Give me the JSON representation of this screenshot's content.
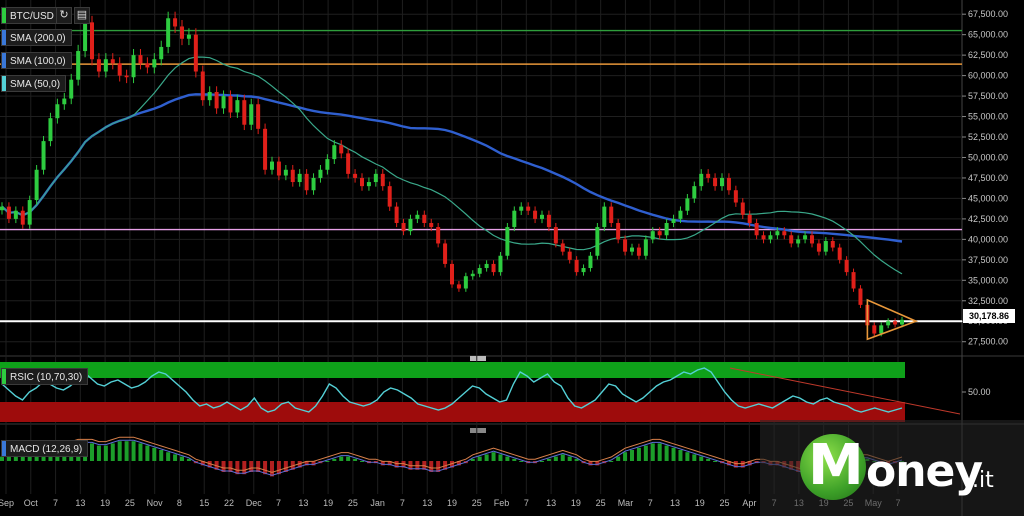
{
  "chart_data": [
    {
      "type": "candlestick",
      "title": "BTC/USD",
      "indicators": [
        "SMA (200,0)",
        "SMA (100,0)",
        "SMA (50,0)"
      ],
      "y_ticks": [
        "67,500.00",
        "65,000.00",
        "62,500.00",
        "60,000.00",
        "57,500.00",
        "55,000.00",
        "52,500.00",
        "50,000.00",
        "47,500.00",
        "45,000.00",
        "42,500.00",
        "40,000.00",
        "37,500.00",
        "35,000.00",
        "32,500.00",
        "30,000.00",
        "27,500.00"
      ],
      "ylim": [
        26000,
        68500
      ],
      "last_price": "30,178.86",
      "horizontal_levels": [
        {
          "value": 65500,
          "color": "#2f9e3c"
        },
        {
          "value": 61400,
          "color": "#e8973a"
        },
        {
          "value": 41200,
          "color": "#e6a0e6"
        },
        {
          "value": 30000,
          "color": "#ffffff"
        }
      ],
      "closes": [
        44000,
        42500,
        43500,
        41800,
        44800,
        48500,
        52000,
        54800,
        56500,
        57200,
        59500,
        63000,
        66500,
        62000,
        60500,
        62000,
        61500,
        60000,
        59800,
        62500,
        61500,
        61000,
        62000,
        63500,
        67000,
        66000,
        64500,
        65000,
        60500,
        57000,
        58000,
        56000,
        57500,
        55500,
        57000,
        54000,
        56500,
        53500,
        48500,
        49500,
        47800,
        48500,
        47000,
        48000,
        46000,
        47500,
        48500,
        49800,
        51500,
        50500,
        48000,
        47500,
        46500,
        47000,
        48000,
        46500,
        44000,
        42000,
        41000,
        42500,
        43000,
        42000,
        41500,
        39500,
        37000,
        34500,
        34000,
        35500,
        35800,
        36500,
        37000,
        36000,
        38000,
        41500,
        43500,
        44000,
        43500,
        42500,
        43000,
        41500,
        39500,
        38500,
        37500,
        36000,
        36500,
        38000,
        41500,
        44000,
        42000,
        40000,
        38500,
        39000,
        38000,
        40000,
        41000,
        40500,
        42000,
        42500,
        43500,
        45000,
        46500,
        48000,
        47500,
        46500,
        47500,
        46000,
        44500,
        43000,
        42000,
        40500,
        40000,
        40500,
        41000,
        40500,
        39500,
        40000,
        40500,
        39500,
        38500,
        39800,
        39000,
        37500,
        36000,
        34000,
        32000,
        29500,
        28500,
        29500,
        30000,
        29600,
        30178
      ]
    },
    {
      "type": "line",
      "title": "RSIC (10,70,30)",
      "y_ticks": [
        "50.00"
      ],
      "ylim": [
        20,
        80
      ],
      "values": [
        58,
        52,
        46,
        42,
        50,
        54,
        60,
        58,
        54,
        52,
        56,
        62,
        70,
        64,
        58,
        56,
        60,
        62,
        58,
        54,
        56,
        60,
        66,
        70,
        68,
        62,
        56,
        50,
        42,
        36,
        38,
        34,
        36,
        40,
        36,
        32,
        36,
        44,
        34,
        30,
        32,
        38,
        40,
        34,
        32,
        30,
        36,
        46,
        58,
        54,
        46,
        40,
        38,
        36,
        38,
        42,
        50,
        54,
        52,
        48,
        44,
        38,
        36,
        34,
        32,
        34,
        38,
        44,
        50,
        56,
        54,
        48,
        44,
        40,
        42,
        58,
        70,
        66,
        60,
        64,
        68,
        60,
        56,
        44,
        36,
        34,
        38,
        42,
        50,
        58,
        56,
        48,
        44,
        40,
        44,
        50,
        56,
        60,
        62,
        66,
        70,
        68,
        72,
        74,
        70,
        60,
        50,
        42,
        36,
        34,
        36,
        38,
        36,
        34,
        38,
        42,
        46,
        44,
        40,
        38,
        42,
        44,
        40,
        38,
        36,
        32,
        30,
        32,
        34,
        32,
        30,
        32,
        34
      ]
    },
    {
      "type": "bar",
      "title": "MACD (12,26,9)",
      "x_tick_labels": [
        "Sep",
        "Oct",
        "7",
        "13",
        "19",
        "25",
        "Nov",
        "8",
        "15",
        "22",
        "Dec",
        "7",
        "13",
        "19",
        "25",
        "Jan",
        "7",
        "13",
        "19",
        "25",
        "Feb",
        "7",
        "13",
        "19",
        "25",
        "Mar",
        "7",
        "13",
        "19",
        "25",
        "Apr",
        "7",
        "13",
        "19",
        "25",
        "May",
        "7"
      ],
      "histogram": [
        2,
        3,
        4,
        4,
        5,
        5,
        6,
        6,
        6,
        7,
        7,
        8,
        8,
        8,
        7,
        7,
        8,
        9,
        9,
        9,
        8,
        7,
        6,
        5,
        4,
        3,
        2,
        1,
        -1,
        -2,
        -3,
        -4,
        -5,
        -5,
        -6,
        -6,
        -5,
        -5,
        -6,
        -7,
        -6,
        -5,
        -4,
        -3,
        -2,
        -2,
        -1,
        0,
        1,
        2,
        2,
        1,
        0,
        -1,
        -1,
        -2,
        -2,
        -3,
        -3,
        -4,
        -4,
        -4,
        -5,
        -5,
        -4,
        -3,
        -2,
        -1,
        1,
        2,
        3,
        4,
        3,
        2,
        1,
        0,
        -1,
        -1,
        0,
        1,
        2,
        3,
        2,
        1,
        -1,
        -2,
        -2,
        -1,
        0,
        2,
        4,
        5,
        6,
        7,
        8,
        8,
        7,
        6,
        5,
        4,
        3,
        2,
        1,
        0,
        -1,
        -2,
        -3,
        -3,
        -2,
        -1,
        -1,
        -2,
        -2,
        -3,
        -4,
        -5,
        -6,
        -6,
        -5,
        -4,
        -3,
        -2,
        -1,
        0,
        1,
        1,
        0,
        -1,
        -2,
        -1,
        0
      ]
    }
  ],
  "labels": {
    "main": "BTC/USD",
    "sma200": "SMA (200,0)",
    "sma100": "SMA (100,0)",
    "sma50": "SMA (50,0)",
    "rsi": "RSIC (10,70,30)",
    "macd": "MACD (12,26,9)",
    "rsi_tick": "50.00"
  },
  "tools": {
    "refresh_icon": "refresh-icon",
    "chart_icon": "chart-icon"
  },
  "watermark": {
    "brand_m": "M",
    "brand_rest": "oney",
    "brand_tld": ".it"
  },
  "colors": {
    "up": "#2ecc40",
    "down": "#e0201a",
    "sma200": "#2f5fcf",
    "sma100": "#3a78d8",
    "sma50": "#3aa88a",
    "rsi": "#54d0d6"
  }
}
